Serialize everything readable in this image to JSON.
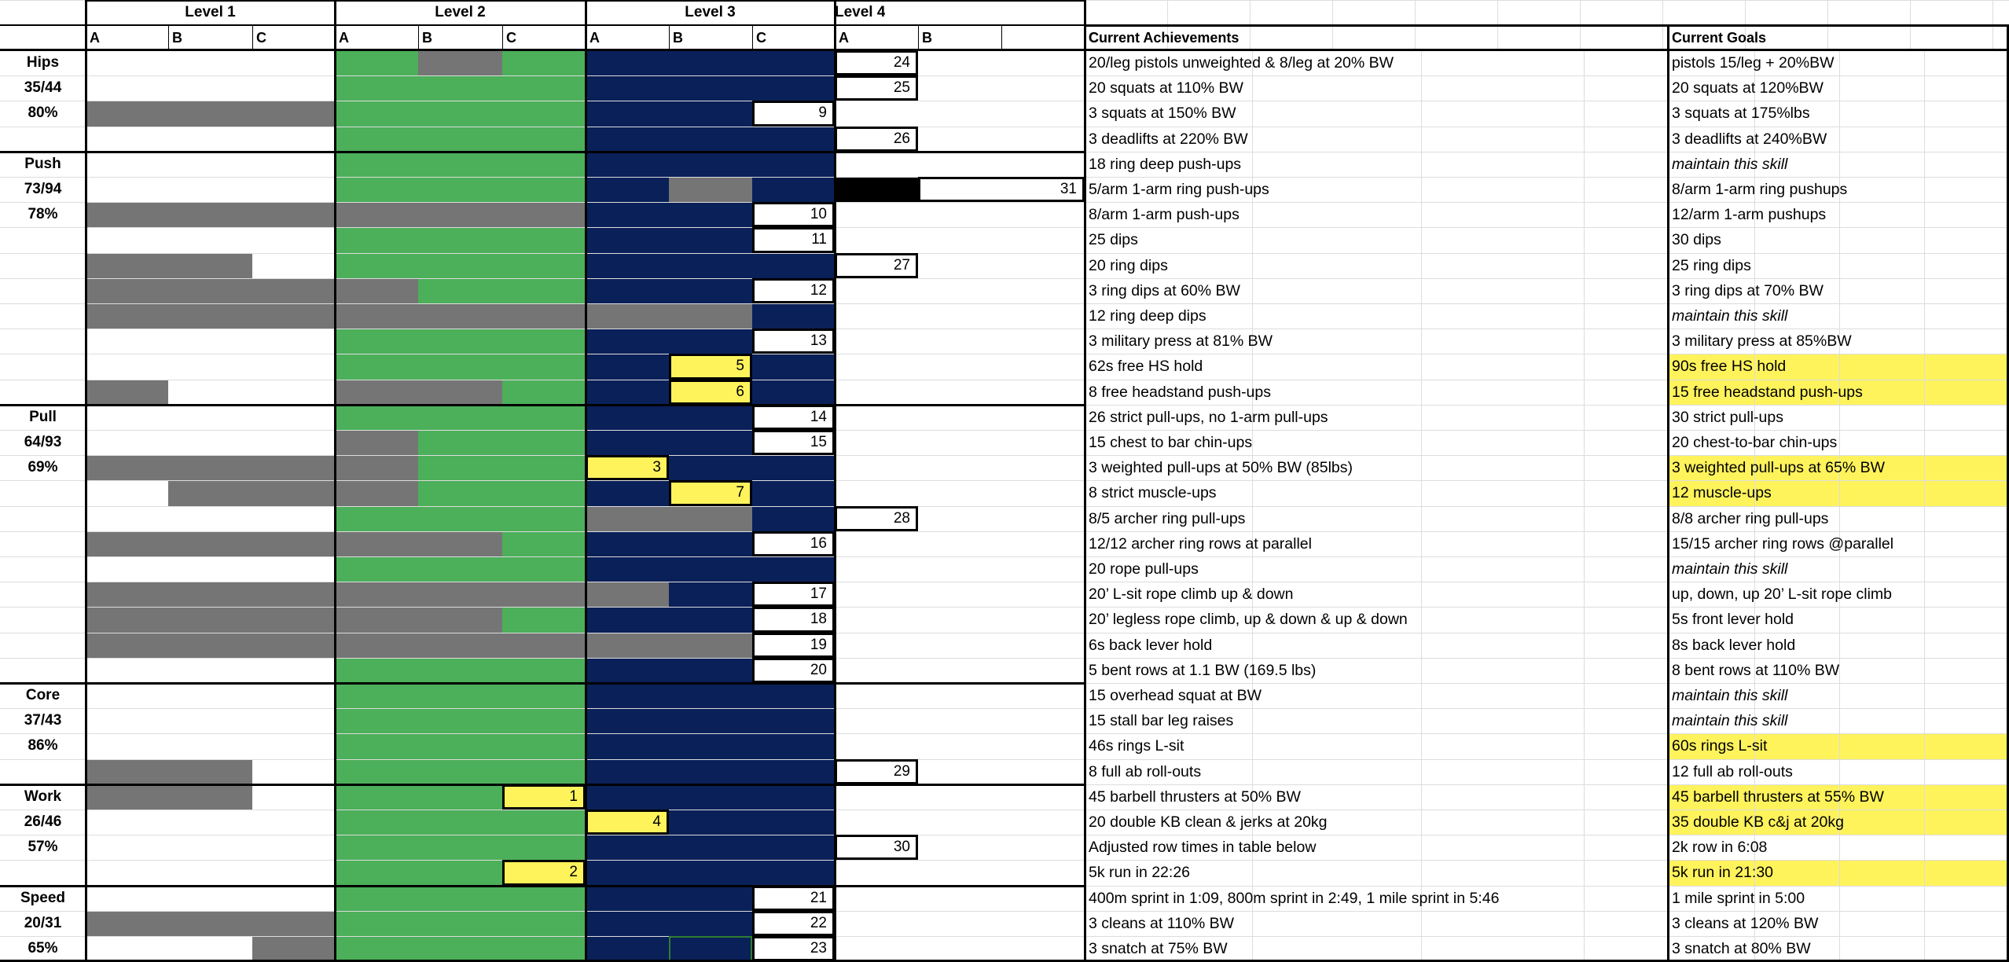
{
  "levels": [
    "Level 1",
    "Level 2",
    "Level 3",
    "Level 4"
  ],
  "sublevels": [
    "A",
    "B",
    "C"
  ],
  "achievements_header": "Current Achievements",
  "goals_header": "Current Goals",
  "colors": {
    "level2": "#4caf5a",
    "level3": "#0a2059",
    "incomplete": "#757575",
    "mastered": "#000000",
    "highlight": "#fff35c",
    "grid": "#dddddd"
  },
  "groups": [
    {
      "name": "Hips",
      "score": "35/44",
      "percent": "80%",
      "rows": [
        {
          "achievement": "20/leg pistols unweighted & 8/leg at 20% BW",
          "goal": "pistols 15/leg + 20%BW"
        },
        {
          "achievement": "20 squats at 110% BW",
          "goal": "20 squats at 120%BW"
        },
        {
          "achievement": "3 squats at 150% BW",
          "goal": "3 squats at 175%lbs"
        },
        {
          "achievement": "3 deadlifts at 220% BW",
          "goal": "3 deadlifts at 240%BW"
        }
      ]
    },
    {
      "name": "Push",
      "score": "73/94",
      "percent": "78%",
      "rows": [
        {
          "achievement": "18 ring deep push-ups",
          "goal": "maintain this skill"
        },
        {
          "achievement": "5/arm 1-arm ring push-ups",
          "goal": "8/arm 1-arm ring pushups"
        },
        {
          "achievement": "8/arm 1-arm push-ups",
          "goal": "12/arm 1-arm pushups"
        },
        {
          "achievement": "25 dips",
          "goal": "30 dips"
        },
        {
          "achievement": "20 ring dips",
          "goal": "25 ring dips"
        },
        {
          "achievement": "3 ring dips at 60% BW",
          "goal": "3 ring dips at 70% BW"
        },
        {
          "achievement": "12 ring deep dips",
          "goal": "maintain this skill"
        },
        {
          "achievement": "3 military press at 81% BW",
          "goal": "3 military press at 85%BW"
        },
        {
          "achievement": "62s free HS hold",
          "goal": "90s free HS hold"
        },
        {
          "achievement": "8 free headstand push-ups",
          "goal": "15 free headstand push-ups"
        }
      ]
    },
    {
      "name": "Pull",
      "score": "64/93",
      "percent": "69%",
      "rows": [
        {
          "achievement": "26 strict pull-ups, no 1-arm pull-ups",
          "goal": "30 strict pull-ups"
        },
        {
          "achievement": "15 chest to bar chin-ups",
          "goal": "20 chest-to-bar chin-ups"
        },
        {
          "achievement": "3 weighted pull-ups at 50% BW (85lbs)",
          "goal": "3 weighted pull-ups at 65% BW"
        },
        {
          "achievement": "8 strict muscle-ups",
          "goal": "12 muscle-ups"
        },
        {
          "achievement": "8/5 archer ring pull-ups",
          "goal": "8/8 archer ring pull-ups"
        },
        {
          "achievement": "12/12 archer ring rows at parallel",
          "goal": "15/15 archer ring rows @parallel"
        },
        {
          "achievement": "20 rope pull-ups",
          "goal": "maintain this skill"
        },
        {
          "achievement": "20’ L-sit rope climb up & down",
          "goal": "up, down, up 20’ L-sit rope climb"
        },
        {
          "achievement": "20’ legless rope climb, up & down & up & down",
          "goal": "5s front lever hold"
        },
        {
          "achievement": "6s back lever hold",
          "goal": "8s back lever hold"
        },
        {
          "achievement": "5 bent rows at 1.1 BW (169.5 lbs)",
          "goal": "8 bent rows at 110% BW"
        }
      ]
    },
    {
      "name": "Core",
      "score": "37/43",
      "percent": "86%",
      "rows": [
        {
          "achievement": "15 overhead squat at BW",
          "goal": "maintain this skill"
        },
        {
          "achievement": "15  stall bar leg raises",
          "goal": "maintain this skill"
        },
        {
          "achievement": "46s rings L-sit",
          "goal": "60s rings L-sit"
        },
        {
          "achievement": "8 full ab roll-outs",
          "goal": "12 full ab roll-outs"
        }
      ]
    },
    {
      "name": "Work",
      "score": "26/46",
      "percent": "57%",
      "rows": [
        {
          "achievement": "45 barbell thrusters at 50% BW",
          "goal": "45 barbell thrusters at 55% BW"
        },
        {
          "achievement": "20 double KB clean & jerks at 20kg",
          "goal": "35 double KB c&j at 20kg"
        },
        {
          "achievement": "Adjusted row times in table below",
          "goal": "2k row in 6:08"
        },
        {
          "achievement": "5k run in 22:26",
          "goal": "5k run in 21:30"
        }
      ]
    },
    {
      "name": "Speed",
      "score": "20/31",
      "percent": "65%",
      "rows": [
        {
          "achievement": "400m sprint in 1:09, 800m sprint in 2:49, 1 mile sprint in 5:46",
          "goal": "1 mile sprint in 5:00"
        },
        {
          "achievement": "3 cleans at 110% BW",
          "goal": "3 cleans at 120% BW"
        },
        {
          "achievement": "3 snatch at 75% BW",
          "goal": "3 snatch at 80% BW"
        }
      ]
    }
  ],
  "rank_boxes": [
    {
      "row": 0,
      "col": 10,
      "value": "24",
      "fill": "white"
    },
    {
      "row": 1,
      "col": 10,
      "value": "25",
      "fill": "white"
    },
    {
      "row": 2,
      "col": 9,
      "value": "9",
      "fill": "white"
    },
    {
      "row": 3,
      "col": 10,
      "value": "26",
      "fill": "white"
    },
    {
      "row": 5,
      "col": 11,
      "value": "31",
      "fill": "white"
    },
    {
      "row": 6,
      "col": 9,
      "value": "10",
      "fill": "white"
    },
    {
      "row": 7,
      "col": 9,
      "value": "11",
      "fill": "white"
    },
    {
      "row": 8,
      "col": 10,
      "value": "27",
      "fill": "white"
    },
    {
      "row": 9,
      "col": 9,
      "value": "12",
      "fill": "white"
    },
    {
      "row": 11,
      "col": 9,
      "value": "13",
      "fill": "white"
    },
    {
      "row": 12,
      "col": 8,
      "value": "5",
      "fill": "yellow"
    },
    {
      "row": 13,
      "col": 8,
      "value": "6",
      "fill": "yellow"
    },
    {
      "row": 14,
      "col": 9,
      "value": "14",
      "fill": "white"
    },
    {
      "row": 15,
      "col": 9,
      "value": "15",
      "fill": "white"
    },
    {
      "row": 16,
      "col": 7,
      "value": "3",
      "fill": "yellow"
    },
    {
      "row": 17,
      "col": 8,
      "value": "7",
      "fill": "yellow"
    },
    {
      "row": 18,
      "col": 10,
      "value": "28",
      "fill": "white"
    },
    {
      "row": 19,
      "col": 9,
      "value": "16",
      "fill": "white"
    },
    {
      "row": 21,
      "col": 9,
      "value": "17",
      "fill": "white"
    },
    {
      "row": 22,
      "col": 9,
      "value": "18",
      "fill": "white"
    },
    {
      "row": 23,
      "col": 9,
      "value": "19",
      "fill": "white"
    },
    {
      "row": 24,
      "col": 9,
      "value": "20",
      "fill": "white"
    },
    {
      "row": 28,
      "col": 10,
      "value": "29",
      "fill": "white"
    },
    {
      "row": 29,
      "col": 6,
      "value": "1",
      "fill": "yellow"
    },
    {
      "row": 30,
      "col": 7,
      "value": "4",
      "fill": "yellow"
    },
    {
      "row": 31,
      "col": 10,
      "value": "30",
      "fill": "white"
    },
    {
      "row": 32,
      "col": 6,
      "value": "2",
      "fill": "yellow"
    },
    {
      "row": 33,
      "col": 9,
      "value": "21",
      "fill": "white"
    },
    {
      "row": 34,
      "col": 9,
      "value": "22",
      "fill": "white"
    },
    {
      "row": 35,
      "col": 9,
      "value": "23",
      "fill": "white"
    }
  ],
  "highlighted_goal_rows": [
    12,
    13,
    16,
    17,
    27,
    29,
    30,
    32
  ]
}
